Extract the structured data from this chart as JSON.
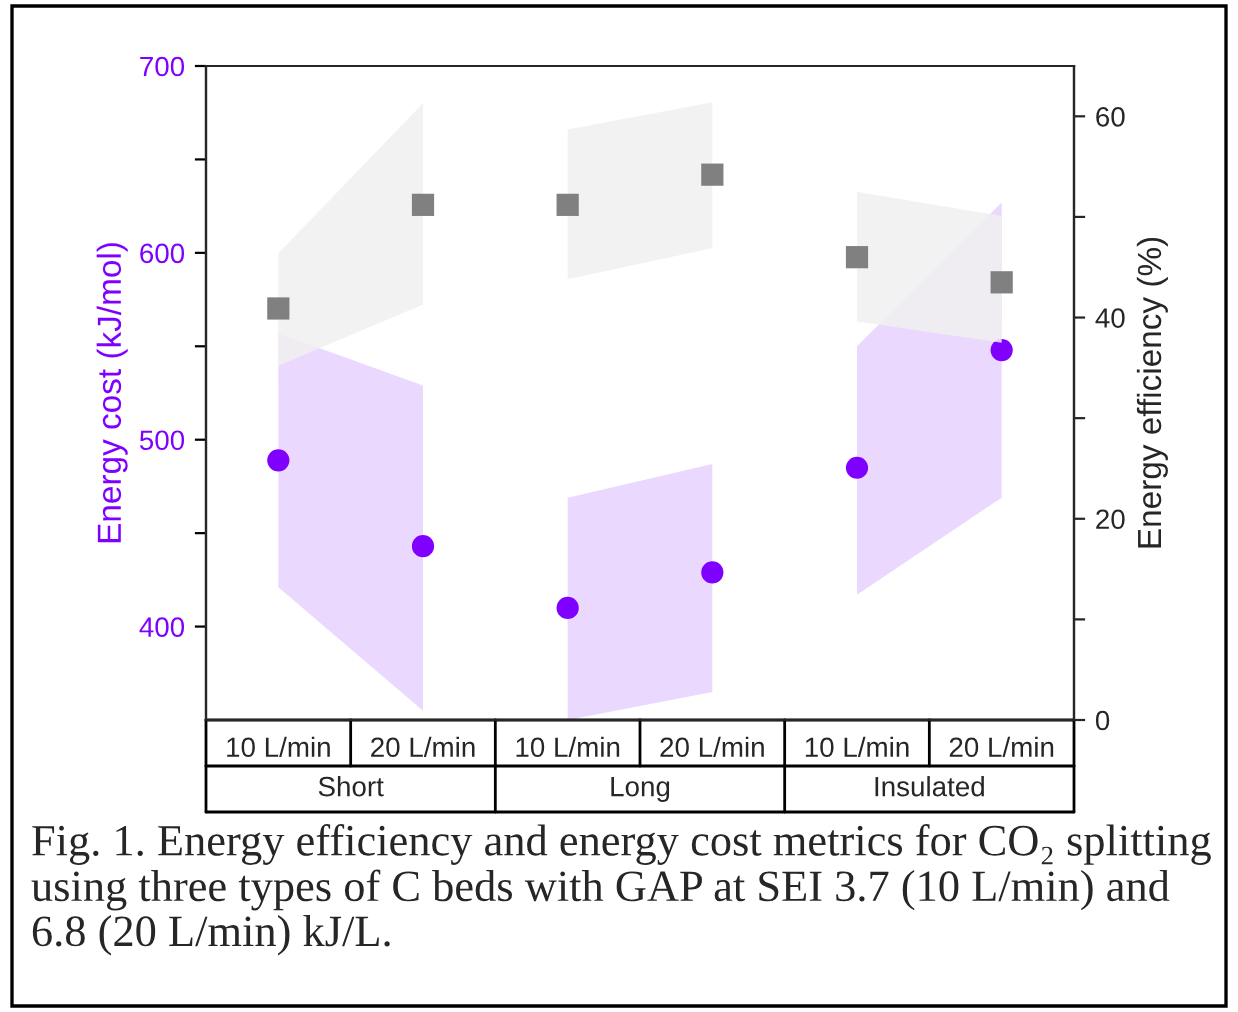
{
  "chart_data": {
    "type": "scatter",
    "categories": [
      "10 L/min",
      "20 L/min",
      "10 L/min",
      "20 L/min",
      "10 L/min",
      "20 L/min"
    ],
    "series": [
      {
        "color": "#8000ff",
        "marker": "circle",
        "values": [
          489,
          443,
          410,
          429,
          485,
          548
        ],
        "lower": [
          421,
          355,
          350,
          365,
          417,
          469
        ],
        "upper": [
          557,
          529,
          469,
          487,
          550,
          627
        ]
      },
      {
        "color": "#808080",
        "marker": "square",
        "axis": "y2",
        "values": [
          40.9,
          51.2,
          51.2,
          54.2,
          46.0,
          43.5
        ],
        "lower": [
          35.2,
          41.3,
          43.8,
          46.9,
          39.6,
          37.5
        ],
        "upper": [
          46.4,
          61.3,
          58.7,
          61.4,
          52.5,
          50.1
        ]
      }
    ],
    "ylabel": "Energy cost (kJ/mol)",
    "y2label": "Energy efficiency (%)",
    "ylim": [
      350,
      700
    ],
    "yticks": [
      400,
      {
        "value": 450,
        "label": null
      },
      500,
      {
        "value": 550,
        "label": null
      },
      600,
      {
        "value": 650,
        "label": null
      },
      700
    ],
    "y2lim": [
      0,
      65
    ],
    "y2ticks": [
      0,
      {
        "value": 10,
        "label": null
      },
      20,
      {
        "value": 30,
        "label": null
      },
      40,
      {
        "value": 50,
        "label": null
      },
      60
    ],
    "annotations": [
      "Short",
      "Long",
      "Insulated",
      "Fig. 1. Energy efficiency and energy cost metrics for CO₂ splitting using three types of C beds with GAP at SEI 3.7 (10 L/min) and 6.8 (20 L/min) kJ/L."
    ],
    "grid": false,
    "legend": false
  }
}
